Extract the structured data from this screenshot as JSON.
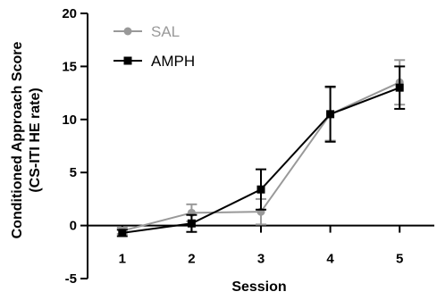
{
  "chart_data": {
    "type": "line",
    "title": "",
    "xlabel": "Session",
    "ylabel_lines": [
      "Conditioned Approach Score",
      "(CS-ITI HE rate)"
    ],
    "x": [
      1,
      2,
      3,
      4,
      5
    ],
    "x_tick_labels": [
      "1",
      "2",
      "3",
      "4",
      "5"
    ],
    "xlim": [
      0.5,
      5.5
    ],
    "ylim": [
      -5,
      20
    ],
    "y_ticks": [
      -5,
      0,
      5,
      10,
      15,
      20
    ],
    "y_tick_labels": [
      "-5",
      "0",
      "5",
      "10",
      "15",
      "20"
    ],
    "legend_position": "top-left",
    "series": [
      {
        "name": "SAL",
        "color": "#999999",
        "marker": "circle",
        "values": [
          -0.5,
          1.2,
          1.3,
          10.5,
          13.5
        ],
        "error": [
          0.3,
          0.8,
          1.2,
          2.5,
          2.1
        ]
      },
      {
        "name": "AMPH",
        "color": "#000000",
        "marker": "square",
        "values": [
          -0.7,
          0.2,
          3.4,
          10.5,
          13.0
        ],
        "error": [
          0.3,
          0.8,
          1.9,
          2.6,
          2.0
        ]
      }
    ]
  }
}
